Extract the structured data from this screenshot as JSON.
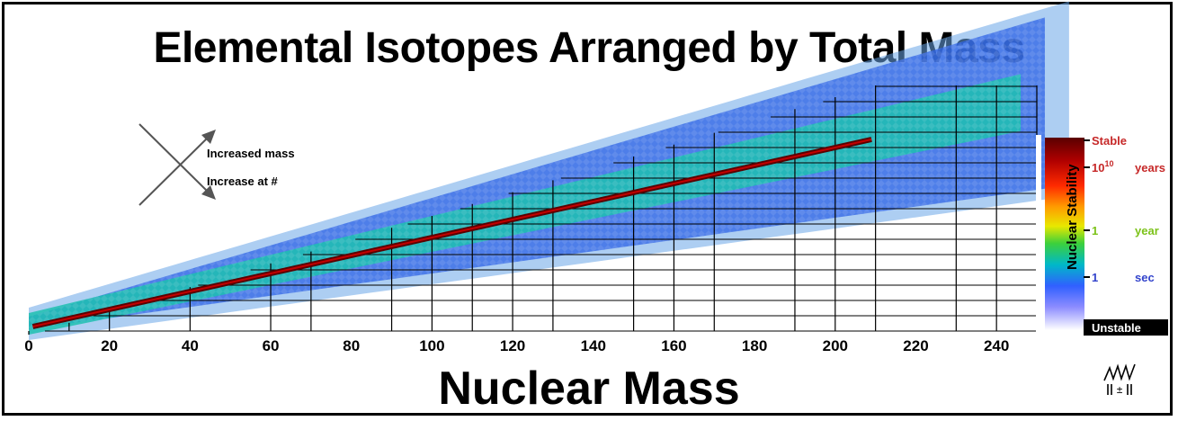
{
  "chart_data": {
    "type": "heatmap",
    "title": "Elemental Isotopes Arranged by Total Mass",
    "xlabel": "Nuclear Mass",
    "x_ticks": [
      0,
      20,
      40,
      60,
      80,
      100,
      120,
      140,
      160,
      180,
      200,
      220,
      240
    ],
    "xlim": [
      0,
      250
    ],
    "annotations": [
      "Increased mass",
      "Increase at #"
    ],
    "colorbar": {
      "title": "Nuclear Stability",
      "labels": [
        {
          "text": "Stable",
          "unit": "",
          "color": "#c62828"
        },
        {
          "text": "10",
          "sup": "10",
          "unit": "years",
          "color": "#c62828"
        },
        {
          "text": "1",
          "unit": "year",
          "color": "#7cc219"
        },
        {
          "text": "1",
          "unit": "sec",
          "color": "#3344cc"
        },
        {
          "text": "Unstable",
          "unit": "",
          "color": "#ffffff"
        }
      ]
    },
    "grid": true,
    "stability_line_mass_range": [
      1,
      209
    ]
  }
}
